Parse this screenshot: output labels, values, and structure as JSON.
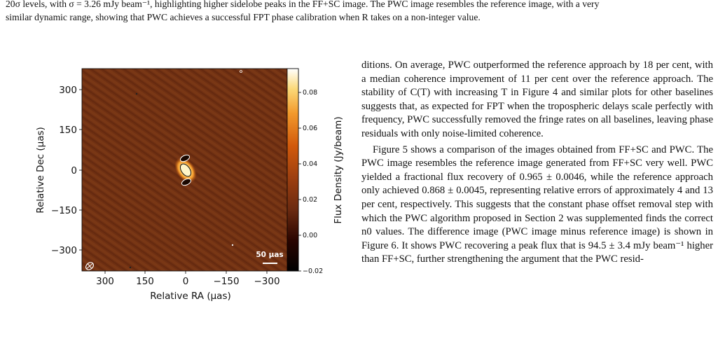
{
  "caption": {
    "line1": "20σ levels, with σ = 3.26 mJy beam⁻¹, highlighting higher sidelobe peaks in the FF+SC image. The PWC image resembles the reference image, with a very",
    "line2": "similar dynamic range, showing that PWC achieves a successful FPT phase calibration when R takes on a non-integer value."
  },
  "figure": {
    "xlabel": "Relative RA (μas)",
    "ylabel": "Relative Dec (μas)",
    "colorbar_label": "Flux Density (Jy/beam)",
    "scalebar_label": "50 μas",
    "x_ticks": [
      "300",
      "150",
      "0",
      "−150",
      "−300"
    ],
    "y_ticks": [
      "300",
      "150",
      "0",
      "−150",
      "−300"
    ],
    "cbar_ticks": [
      "0.08",
      "0.06",
      "0.04",
      "0.02",
      "0.00",
      "−0.02"
    ],
    "colors": {
      "map_bg": "#6b2e12",
      "peak": "#fff6c0",
      "cbar_top": "#ffffff",
      "cbar_bottom": "#000000"
    }
  },
  "chart_data": {
    "type": "heatmap",
    "xlabel": "Relative RA (μas)",
    "ylabel": "Relative Dec (μas)",
    "colorbar_label": "Flux Density (Jy/beam)",
    "xlim": [
      360,
      -360
    ],
    "ylim": [
      -380,
      380
    ],
    "clim": [
      -0.02,
      0.095
    ],
    "x_ticks": [
      300,
      150,
      0,
      -150,
      -300
    ],
    "y_ticks": [
      300,
      150,
      0,
      -150,
      -300
    ],
    "colorbar_ticks": [
      0.08,
      0.06,
      0.04,
      0.02,
      0.0,
      -0.02
    ]
  },
  "body": {
    "p1": "ditions. On average, PWC outperformed the reference approach by 18 per cent, with a median coherence improvement of 11 per cent over the reference approach. The stability of C(T) with increasing T in Figure 4 and similar plots for other baselines suggests that, as expected for FPT when the tropospheric delays scale perfectly with frequency, PWC successfully removed the fringe rates on all baselines, leaving phase residuals with only noise-limited coherence.",
    "p2": "Figure 5 shows a comparison of the images obtained from FF+SC and PWC. The PWC image resembles the reference image generated from FF+SC very well. PWC yielded a fractional flux recovery of 0.965 ± 0.0046, while the reference approach only achieved 0.868 ± 0.0045, representing relative errors of approximately 4 and 13 per cent, respectively. This suggests that the constant phase offset removal step with which the PWC algorithm proposed in Section 2 was supplemented finds the correct n0 values. The difference image (PWC image minus reference image) is shown in Figure 6. It shows PWC recovering a peak flux that is 94.5 ± 3.4 mJy beam⁻¹ higher than FF+SC, further strengthening the argument that the PWC resid-"
  }
}
